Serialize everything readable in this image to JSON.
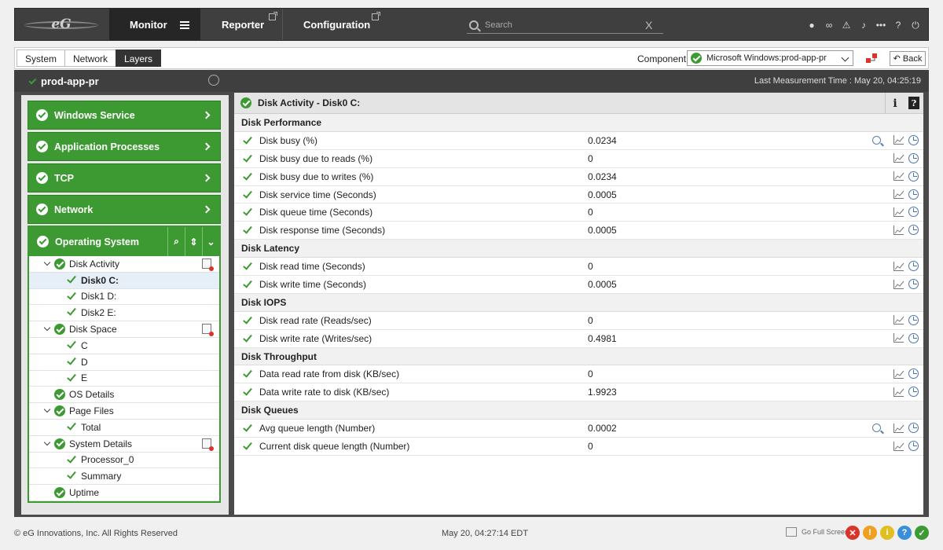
{
  "nav": {
    "logo": "eG",
    "monitor": "Monitor",
    "reporter": "Reporter",
    "configuration": "Configuration",
    "search_placeholder": "Search",
    "search_clear": "X"
  },
  "subnav": {
    "tabs": [
      "System",
      "Network",
      "Layers"
    ],
    "component_label": "Component",
    "component_value": "Microsoft Windows:prod-app-pr",
    "back": "Back"
  },
  "host": {
    "name": "prod-app-pr",
    "last_measurement": "Last Measurement Time : May 20, 04:25:19"
  },
  "layers": [
    {
      "label": "Windows Service"
    },
    {
      "label": "Application Processes"
    },
    {
      "label": "TCP"
    },
    {
      "label": "Network"
    }
  ],
  "os": {
    "label": "Operating System",
    "tree": [
      {
        "label": "Disk Activity",
        "level": 0,
        "expand": true,
        "status": "circle",
        "doc": true
      },
      {
        "label": "Disk0 C:",
        "level": 1,
        "status": "tick",
        "selected": true
      },
      {
        "label": "Disk1 D:",
        "level": 1,
        "status": "tick"
      },
      {
        "label": "Disk2 E:",
        "level": 1,
        "status": "tick"
      },
      {
        "label": "Disk Space",
        "level": 0,
        "expand": true,
        "status": "circle",
        "doc": true
      },
      {
        "label": "C",
        "level": 1,
        "status": "tick"
      },
      {
        "label": "D",
        "level": 1,
        "status": "tick"
      },
      {
        "label": "E",
        "level": 1,
        "status": "tick"
      },
      {
        "label": "OS Details",
        "level": 0,
        "status": "circle"
      },
      {
        "label": "Page Files",
        "level": 0,
        "expand": true,
        "status": "circle"
      },
      {
        "label": "Total",
        "level": 1,
        "status": "tick"
      },
      {
        "label": "System Details",
        "level": 0,
        "expand": true,
        "status": "circle",
        "doc": true
      },
      {
        "label": "Processor_0",
        "level": 1,
        "status": "tick"
      },
      {
        "label": "Summary",
        "level": 1,
        "status": "tick"
      },
      {
        "label": "Uptime",
        "level": 0,
        "status": "circle"
      }
    ]
  },
  "detail": {
    "title": "Disk Activity - Disk0 C:",
    "info": "i",
    "help": "?",
    "sections": [
      {
        "title": "Disk Performance",
        "rows": [
          {
            "name": "Disk busy (%)",
            "value": "0.0234",
            "zoom": true
          },
          {
            "name": "Disk busy due to reads (%)",
            "value": "0"
          },
          {
            "name": "Disk busy due to writes (%)",
            "value": "0.0234"
          },
          {
            "name": "Disk service time (Seconds)",
            "value": "0.0005"
          },
          {
            "name": "Disk queue time (Seconds)",
            "value": "0"
          },
          {
            "name": "Disk response time (Seconds)",
            "value": "0.0005"
          }
        ]
      },
      {
        "title": "Disk Latency",
        "rows": [
          {
            "name": "Disk read time (Seconds)",
            "value": "0"
          },
          {
            "name": "Disk write time (Seconds)",
            "value": "0.0005"
          }
        ]
      },
      {
        "title": "Disk IOPS",
        "rows": [
          {
            "name": "Disk read rate (Reads/sec)",
            "value": "0"
          },
          {
            "name": "Disk write rate (Writes/sec)",
            "value": "0.4981"
          }
        ]
      },
      {
        "title": "Disk Throughput",
        "rows": [
          {
            "name": "Data read rate from disk (KB/sec)",
            "value": "0"
          },
          {
            "name": "Data write rate to disk (KB/sec)",
            "value": "1.9923"
          }
        ]
      },
      {
        "title": "Disk Queues",
        "rows": [
          {
            "name": "Avg queue length (Number)",
            "value": "0.0002",
            "zoom": true
          },
          {
            "name": "Current disk queue length (Number)",
            "value": "0"
          }
        ]
      }
    ]
  },
  "footer": {
    "copyright": "© eG Innovations, Inc. All Rights Reserved",
    "time": "May 20,  04:27:14 EDT",
    "fullscreen": "Go Full Screen",
    "buttons": [
      {
        "glyph": "✕",
        "color": "#d9342b"
      },
      {
        "glyph": "!",
        "color": "#f0a020"
      },
      {
        "glyph": "i",
        "color": "#e0c020"
      },
      {
        "glyph": "?",
        "color": "#3a8fd8"
      },
      {
        "glyph": "✓",
        "color": "#3d9a33"
      }
    ]
  }
}
